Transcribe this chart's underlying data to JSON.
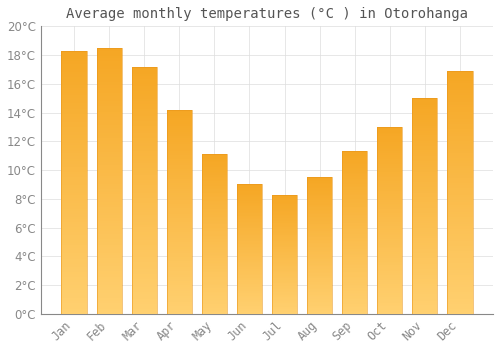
{
  "title": "Average monthly temperatures (°C ) in Otorohanga",
  "months": [
    "Jan",
    "Feb",
    "Mar",
    "Apr",
    "May",
    "Jun",
    "Jul",
    "Aug",
    "Sep",
    "Oct",
    "Nov",
    "Dec"
  ],
  "values": [
    18.3,
    18.5,
    17.2,
    14.2,
    11.1,
    9.0,
    8.3,
    9.5,
    11.3,
    13.0,
    15.0,
    16.9
  ],
  "bar_color_top": "#F5A623",
  "bar_color_bottom": "#FFD070",
  "background_color": "#FFFFFF",
  "grid_color": "#DDDDDD",
  "ylim": [
    0,
    20
  ],
  "ytick_step": 2,
  "title_fontsize": 10,
  "tick_fontsize": 8.5,
  "title_color": "#555555",
  "tick_color": "#888888"
}
